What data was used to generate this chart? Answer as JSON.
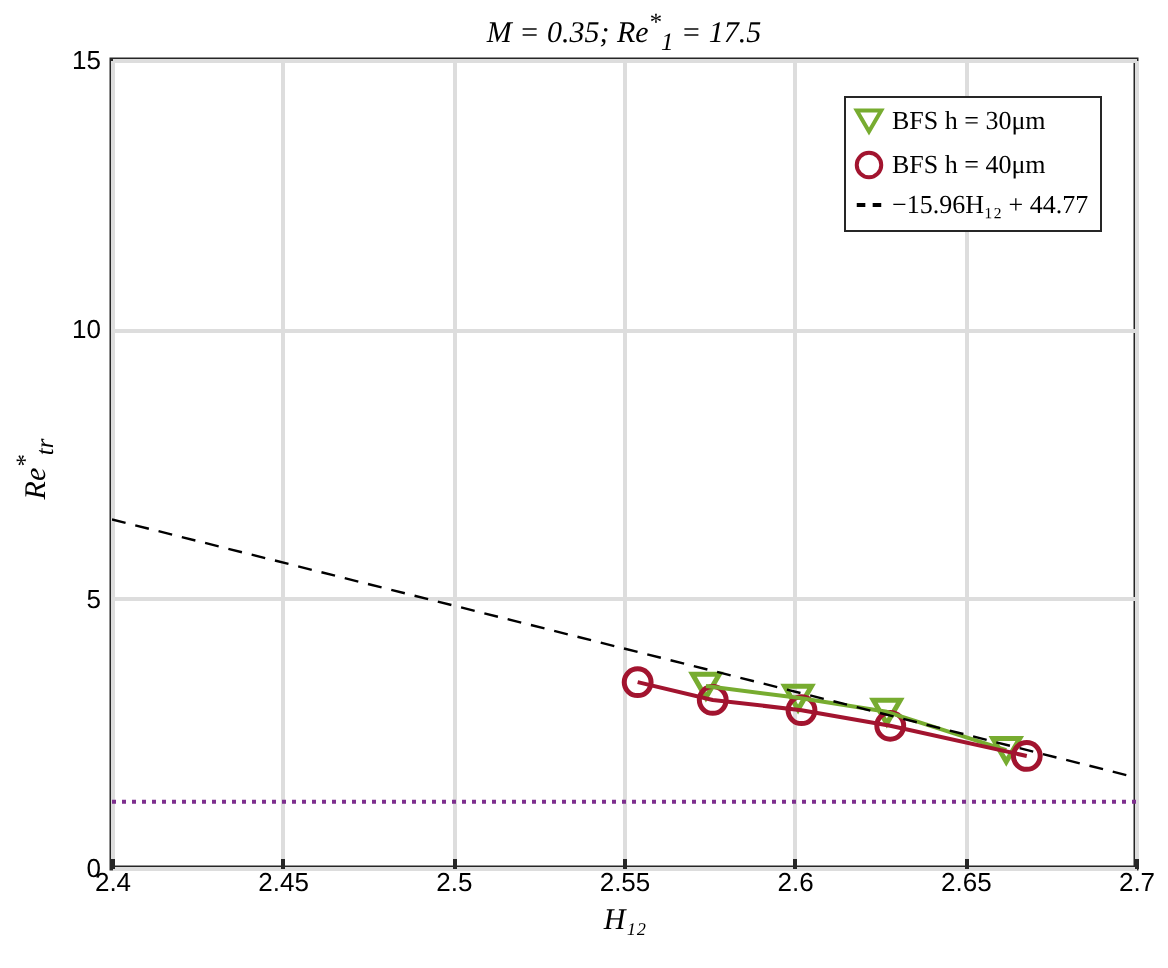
{
  "chart_data": {
    "type": "line",
    "title": "M = 0.35; Re$^{*}$$_{1}$ = 17.5",
    "xlabel": "H₁₂",
    "ylabel": "Re$^{*}$$_{tr}$",
    "xlim": [
      2.4,
      2.7
    ],
    "xticks": [
      2.4,
      2.45,
      2.5,
      2.55,
      2.6,
      2.65,
      2.7
    ],
    "ylim": [
      0,
      15
    ],
    "yticks": [
      0,
      5,
      10,
      15
    ],
    "grid": true,
    "legend": "top right",
    "series": [
      {
        "name": "BFS h = 30μm",
        "color": "#77ac30",
        "marker": "triangle",
        "x": [
          2.574,
          2.601,
          2.627,
          2.662
        ],
        "values": [
          3.38,
          3.16,
          2.9,
          2.19
        ]
      },
      {
        "name": "BFS h = 40μm",
        "color": "#a2142f",
        "marker": "circle",
        "x": [
          2.554,
          2.576,
          2.602,
          2.628,
          2.668
        ],
        "values": [
          3.45,
          3.12,
          2.93,
          2.64,
          2.08
        ]
      },
      {
        "name": "−15.96H₁₂ + 44.77",
        "type": "line",
        "color": "#000000",
        "line_style": "dashed",
        "marker": "none",
        "x": [
          2.4,
          2.7
        ],
        "values": [
          6.47,
          1.68
        ]
      }
    ],
    "ref_lines": [
      {
        "axis": "y",
        "value": 1.23,
        "color": "#7e2f8e",
        "line_style": "dotted"
      }
    ]
  }
}
